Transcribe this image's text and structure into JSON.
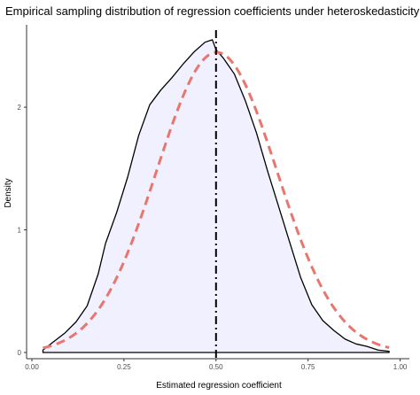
{
  "chart_data": {
    "type": "area",
    "title": "Empirical sampling distribution of regression coefficients under heteroskedasticity",
    "xlabel": "Estimated regression coefficient",
    "ylabel": "Density",
    "xlim": [
      0.0,
      1.0
    ],
    "ylim": [
      0.0,
      2.6
    ],
    "x_ticks": [
      {
        "value": 0.0,
        "label": "0.00"
      },
      {
        "value": 0.25,
        "label": "0.25"
      },
      {
        "value": 0.5,
        "label": "0.50"
      },
      {
        "value": 0.75,
        "label": "0.75"
      },
      {
        "value": 1.0,
        "label": "1.00"
      }
    ],
    "y_ticks": [
      {
        "value": 0,
        "label": "0"
      },
      {
        "value": 1,
        "label": "1"
      },
      {
        "value": 2,
        "label": "2"
      }
    ],
    "grid": false,
    "series": [
      {
        "kind": "empirical-density",
        "fill_color": "#f0f0ff",
        "line_color": "#000000",
        "x": [
          0.03,
          0.06,
          0.09,
          0.12,
          0.15,
          0.18,
          0.2,
          0.23,
          0.26,
          0.29,
          0.32,
          0.35,
          0.38,
          0.41,
          0.44,
          0.47,
          0.49,
          0.5,
          0.52,
          0.55,
          0.58,
          0.61,
          0.64,
          0.67,
          0.7,
          0.73,
          0.76,
          0.79,
          0.82,
          0.85,
          0.88,
          0.91,
          0.94,
          0.97
        ],
        "y": [
          0.02,
          0.09,
          0.16,
          0.25,
          0.38,
          0.64,
          0.89,
          1.14,
          1.43,
          1.77,
          2.02,
          2.14,
          2.24,
          2.35,
          2.45,
          2.53,
          2.55,
          2.47,
          2.4,
          2.27,
          2.05,
          1.79,
          1.48,
          1.19,
          0.9,
          0.61,
          0.39,
          0.26,
          0.18,
          0.11,
          0.07,
          0.05,
          0.02,
          0.01
        ]
      },
      {
        "kind": "normal-density",
        "line_color": "#e8766d",
        "line_style": "dashed",
        "mean": 0.502,
        "sd": 0.163
      }
    ],
    "vline": {
      "x": 0.5,
      "line_style": "dashdot",
      "color": "#000000"
    }
  }
}
